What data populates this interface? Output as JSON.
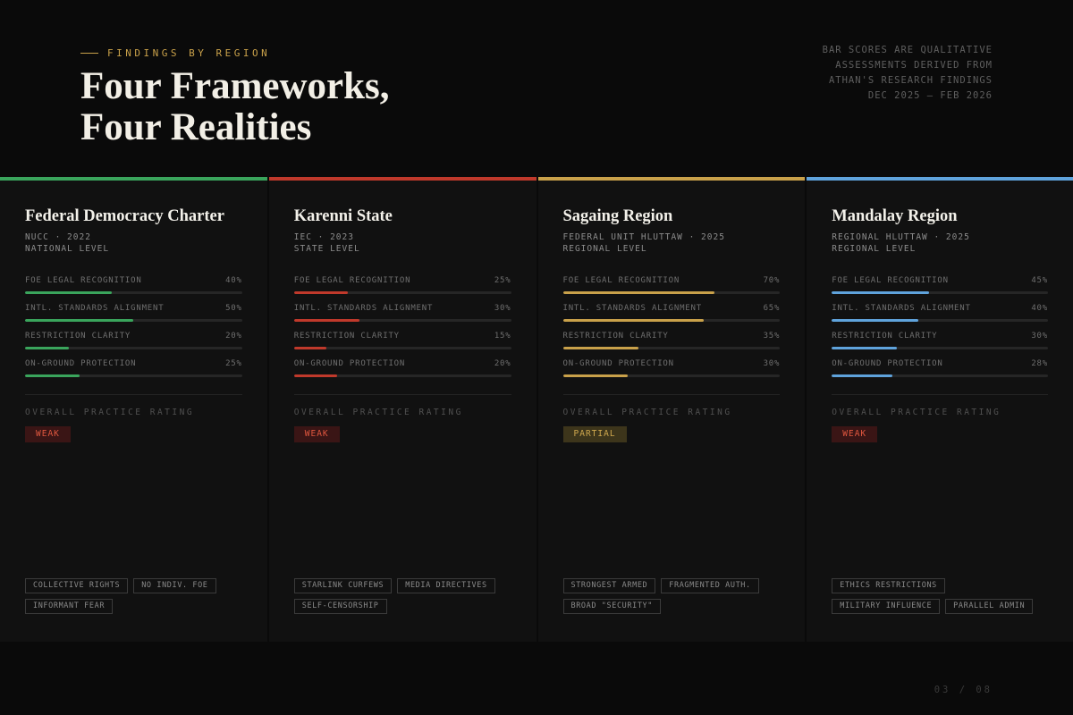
{
  "header": {
    "eyebrow": "FINDINGS BY REGION",
    "eyebrow_color": "#c9a14a",
    "title_line1": "Four Frameworks,",
    "title_line2": "Four Realities",
    "note_lines": [
      "BAR SCORES ARE QUALITATIVE",
      "ASSESSMENTS DERIVED FROM",
      "ATHAN'S RESEARCH FINDINGS",
      "DEC 2025 – FEB 2026"
    ]
  },
  "rating_label": "OVERALL PRACTICE RATING",
  "cards": [
    {
      "title": "Federal Democracy Charter",
      "sub1": "NUCC · 2022",
      "sub2": "NATIONAL LEVEL",
      "accent": "#3aa55c",
      "metrics": [
        {
          "label": "FOE LEGAL RECOGNITION",
          "value": "40%",
          "fraction": 0.4
        },
        {
          "label": "INTL. STANDARDS ALIGNMENT",
          "value": "50%",
          "fraction": 0.5
        },
        {
          "label": "RESTRICTION CLARITY",
          "value": "20%",
          "fraction": 0.2
        },
        {
          "label": "ON-GROUND PROTECTION",
          "value": "25%",
          "fraction": 0.25
        }
      ],
      "rating": "WEAK",
      "rating_type": "weak",
      "tags": [
        "COLLECTIVE RIGHTS",
        "NO INDIV. FOE",
        "INFORMANT FEAR"
      ]
    },
    {
      "title": "Karenni State",
      "sub1": "IEC · 2023",
      "sub2": "STATE LEVEL",
      "accent": "#c0392b",
      "metrics": [
        {
          "label": "FOE LEGAL RECOGNITION",
          "value": "25%",
          "fraction": 0.25
        },
        {
          "label": "INTL. STANDARDS ALIGNMENT",
          "value": "30%",
          "fraction": 0.3
        },
        {
          "label": "RESTRICTION CLARITY",
          "value": "15%",
          "fraction": 0.15
        },
        {
          "label": "ON-GROUND PROTECTION",
          "value": "20%",
          "fraction": 0.2
        }
      ],
      "rating": "WEAK",
      "rating_type": "weak",
      "tags": [
        "STARLINK CURFEWS",
        "MEDIA DIRECTIVES",
        "SELF-CENSORSHIP"
      ]
    },
    {
      "title": "Sagaing Region",
      "sub1": "FEDERAL UNIT HLUTTAW · 2025",
      "sub2": "REGIONAL LEVEL",
      "accent": "#c9a14a",
      "metrics": [
        {
          "label": "FOE LEGAL RECOGNITION",
          "value": "70%",
          "fraction": 0.7
        },
        {
          "label": "INTL. STANDARDS ALIGNMENT",
          "value": "65%",
          "fraction": 0.65
        },
        {
          "label": "RESTRICTION CLARITY",
          "value": "35%",
          "fraction": 0.35
        },
        {
          "label": "ON-GROUND PROTECTION",
          "value": "30%",
          "fraction": 0.3
        }
      ],
      "rating": "PARTIAL",
      "rating_type": "partial",
      "tags": [
        "STRONGEST ARMED",
        "FRAGMENTED AUTH.",
        "BROAD \"SECURITY\""
      ]
    },
    {
      "title": "Mandalay Region",
      "sub1": "REGIONAL HLUTTAW · 2025",
      "sub2": "REGIONAL LEVEL",
      "accent": "#5fa3dc",
      "metrics": [
        {
          "label": "FOE LEGAL RECOGNITION",
          "value": "45%",
          "fraction": 0.45
        },
        {
          "label": "INTL. STANDARDS ALIGNMENT",
          "value": "40%",
          "fraction": 0.4
        },
        {
          "label": "RESTRICTION CLARITY",
          "value": "30%",
          "fraction": 0.3
        },
        {
          "label": "ON-GROUND PROTECTION",
          "value": "28%",
          "fraction": 0.28
        }
      ],
      "rating": "WEAK",
      "rating_type": "weak",
      "tags": [
        "ETHICS RESTRICTIONS",
        "MILITARY INFLUENCE",
        "PARALLEL ADMIN"
      ]
    }
  ],
  "footer": {
    "page": "03 / 08"
  }
}
